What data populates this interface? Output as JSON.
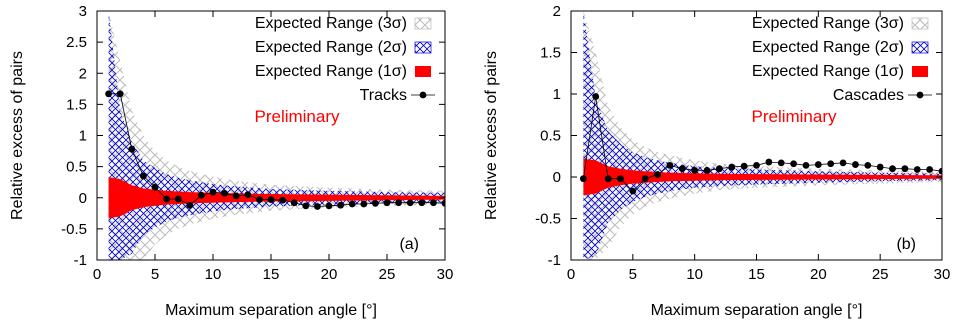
{
  "colors": {
    "one_sigma": "#ff0000",
    "two_sigma": "#0000cc",
    "three_sigma": "#bbbbbb",
    "points": "#000000",
    "annotation": "#ff0000"
  },
  "chart_data": [
    {
      "type": "scatter",
      "xlabel": "Maximum separation angle [°]",
      "ylabel": "Relative excess of pairs",
      "xlim": [
        0,
        30
      ],
      "ylim": [
        -1,
        3
      ],
      "xticks": [
        0,
        5,
        10,
        15,
        20,
        25,
        30
      ],
      "yticks": [
        -1,
        -0.5,
        0,
        0.5,
        1,
        1.5,
        2,
        2.5,
        3
      ],
      "xtick_labels": [
        "0",
        "5",
        "10",
        "15",
        "20",
        "25",
        "30"
      ],
      "ytick_labels": [
        "-1",
        "-0.5",
        "0",
        "0.5",
        "1",
        "1.5",
        "2",
        "2.5",
        "3"
      ],
      "grid": false,
      "legend_position": "top-right",
      "legend": [
        "Expected Range (3σ)",
        "Expected Range (2σ)",
        "Expected Range (1σ)",
        "Tracks"
      ],
      "annotation": "Preliminary",
      "panel_label": "(a)",
      "series": [
        {
          "name": "Tracks",
          "x": [
            1,
            2,
            3,
            4,
            5,
            6,
            7,
            8,
            9,
            10,
            11,
            12,
            13,
            14,
            15,
            16,
            17,
            18,
            19,
            20,
            21,
            22,
            23,
            24,
            25,
            26,
            27,
            28,
            29,
            30
          ],
          "y": [
            1.67,
            1.67,
            0.78,
            0.35,
            0.17,
            -0.02,
            -0.02,
            -0.12,
            0.04,
            0.09,
            0.07,
            0.03,
            0.05,
            -0.03,
            -0.03,
            -0.04,
            -0.08,
            -0.13,
            -0.14,
            -0.13,
            -0.12,
            -0.1,
            -0.1,
            -0.09,
            -0.08,
            -0.08,
            -0.08,
            -0.08,
            -0.08,
            -0.09
          ]
        }
      ],
      "bands": {
        "x": [
          1,
          2,
          3,
          4,
          5,
          6,
          7,
          8,
          10,
          12,
          15,
          20,
          25,
          30
        ],
        "sigma1": [
          0.33,
          0.3,
          0.2,
          0.15,
          0.13,
          0.11,
          0.1,
          0.09,
          0.08,
          0.07,
          0.06,
          0.05,
          0.04,
          0.03
        ],
        "sigma2": [
          3.0,
          1.4,
          0.9,
          0.6,
          0.48,
          0.38,
          0.32,
          0.28,
          0.22,
          0.18,
          0.14,
          0.11,
          0.09,
          0.08
        ],
        "sigma3": [
          3.0,
          2.2,
          1.4,
          1.0,
          0.75,
          0.6,
          0.5,
          0.43,
          0.34,
          0.27,
          0.21,
          0.16,
          0.13,
          0.11
        ]
      }
    },
    {
      "type": "scatter",
      "xlabel": "Maximum separation angle [°]",
      "ylabel": "Relative excess of pairs",
      "xlim": [
        0,
        30
      ],
      "ylim": [
        -1,
        2
      ],
      "xticks": [
        0,
        5,
        10,
        15,
        20,
        25,
        30
      ],
      "yticks": [
        -1,
        -0.5,
        0,
        0.5,
        1,
        1.5,
        2
      ],
      "xtick_labels": [
        "0",
        "5",
        "10",
        "15",
        "20",
        "25",
        "30"
      ],
      "ytick_labels": [
        "-1",
        "-0.5",
        "0",
        "0.5",
        "1",
        "1.5",
        "2"
      ],
      "grid": false,
      "legend_position": "top-right",
      "legend": [
        "Expected Range (3σ)",
        "Expected Range (2σ)",
        "Expected Range (1σ)",
        "Cascades"
      ],
      "annotation": "Preliminary",
      "panel_label": "(b)",
      "series": [
        {
          "name": "Cascades",
          "x": [
            1,
            2,
            3,
            4,
            5,
            6,
            7,
            8,
            9,
            10,
            11,
            12,
            13,
            14,
            15,
            16,
            17,
            18,
            19,
            20,
            21,
            22,
            23,
            24,
            25,
            26,
            27,
            28,
            29,
            30
          ],
          "y": [
            -0.02,
            0.97,
            -0.02,
            -0.02,
            -0.17,
            -0.02,
            0.03,
            0.14,
            0.1,
            0.08,
            0.08,
            0.1,
            0.12,
            0.13,
            0.14,
            0.18,
            0.17,
            0.16,
            0.14,
            0.15,
            0.16,
            0.17,
            0.15,
            0.14,
            0.12,
            0.1,
            0.1,
            0.09,
            0.09,
            0.07
          ]
        }
      ],
      "bands": {
        "x": [
          1,
          2,
          3,
          4,
          5,
          6,
          7,
          8,
          10,
          12,
          15,
          20,
          25,
          30
        ],
        "sigma1": [
          0.22,
          0.2,
          0.13,
          0.1,
          0.08,
          0.07,
          0.06,
          0.05,
          0.045,
          0.04,
          0.035,
          0.03,
          0.025,
          0.02
        ],
        "sigma2": [
          2.0,
          0.95,
          0.55,
          0.4,
          0.3,
          0.24,
          0.2,
          0.17,
          0.13,
          0.11,
          0.09,
          0.07,
          0.05,
          0.04
        ],
        "sigma3": [
          2.0,
          1.5,
          0.85,
          0.6,
          0.45,
          0.36,
          0.3,
          0.26,
          0.2,
          0.16,
          0.13,
          0.1,
          0.08,
          0.06
        ]
      }
    }
  ]
}
